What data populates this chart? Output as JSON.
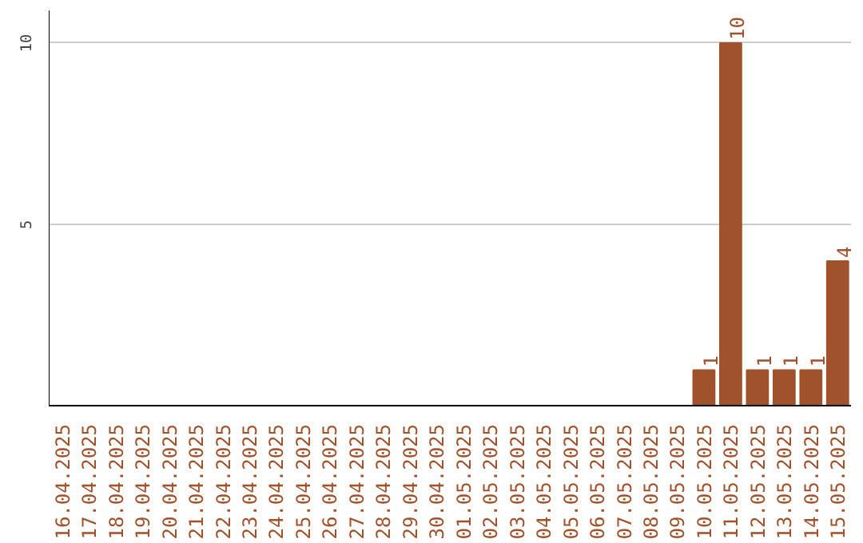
{
  "chart_data": {
    "type": "bar",
    "categories": [
      "16.04.2025",
      "17.04.2025",
      "18.04.2025",
      "19.04.2025",
      "20.04.2025",
      "21.04.2025",
      "22.04.2025",
      "23.04.2025",
      "24.04.2025",
      "25.04.2025",
      "26.04.2025",
      "27.04.2025",
      "28.04.2025",
      "29.04.2025",
      "30.04.2025",
      "01.05.2025",
      "02.05.2025",
      "03.05.2025",
      "04.05.2025",
      "05.05.2025",
      "06.05.2025",
      "07.05.2025",
      "08.05.2025",
      "09.05.2025",
      "10.05.2025",
      "11.05.2025",
      "12.05.2025",
      "13.05.2025",
      "14.05.2025",
      "15.05.2025"
    ],
    "values": [
      0,
      0,
      0,
      0,
      0,
      0,
      0,
      0,
      0,
      0,
      0,
      0,
      0,
      0,
      0,
      0,
      0,
      0,
      0,
      0,
      0,
      0,
      0,
      0,
      1,
      10,
      1,
      1,
      1,
      4
    ],
    "value_labels": [
      null,
      null,
      null,
      null,
      null,
      null,
      null,
      null,
      null,
      null,
      null,
      null,
      null,
      null,
      null,
      null,
      null,
      null,
      null,
      null,
      null,
      null,
      null,
      null,
      "1",
      "10",
      "1",
      "1",
      "1",
      "4"
    ],
    "color": "#a0522d",
    "ylim": [
      0,
      10.9
    ],
    "yticks": [
      5,
      10
    ],
    "grid": "y"
  }
}
